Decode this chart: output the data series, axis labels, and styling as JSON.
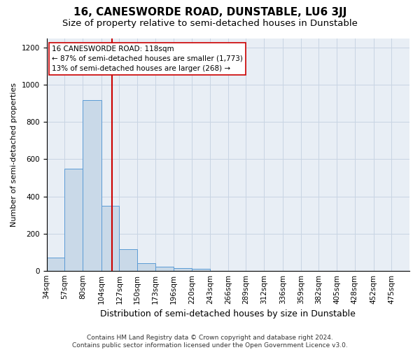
{
  "title": "16, CANESWORDE ROAD, DUNSTABLE, LU6 3JJ",
  "subtitle": "Size of property relative to semi-detached houses in Dunstable",
  "xlabel": "Distribution of semi-detached houses by size in Dunstable",
  "ylabel": "Number of semi-detached properties",
  "annotation_line1": "16 CANESWORDE ROAD: 118sqm",
  "annotation_line2": "← 87% of semi-detached houses are smaller (1,773)",
  "annotation_line3": "13% of semi-detached houses are larger (268) →",
  "footer_line1": "Contains HM Land Registry data © Crown copyright and database right 2024.",
  "footer_line2": "Contains public sector information licensed under the Open Government Licence v3.0.",
  "property_value": 118,
  "bin_edges": [
    34,
    57,
    80,
    104,
    127,
    150,
    173,
    196,
    220,
    243,
    266,
    289,
    312,
    336,
    359,
    382,
    405,
    428,
    452,
    475,
    498
  ],
  "bar_heights": [
    70,
    550,
    920,
    350,
    115,
    40,
    20,
    15,
    10,
    0,
    0,
    0,
    0,
    0,
    0,
    0,
    0,
    0,
    0,
    0
  ],
  "bar_color": "#c9d9e8",
  "bar_edge_color": "#5b9bd5",
  "vline_color": "#cc0000",
  "annotation_bg": "#ffffff",
  "annotation_edge": "#cc0000",
  "grid_color": "#c8d4e3",
  "bg_color": "#e8eef5",
  "ylim": [
    0,
    1250
  ],
  "yticks": [
    0,
    200,
    400,
    600,
    800,
    1000,
    1200
  ],
  "title_fontsize": 11,
  "subtitle_fontsize": 9.5,
  "xlabel_fontsize": 9,
  "ylabel_fontsize": 8,
  "tick_fontsize": 7.5,
  "annotation_fontsize": 7.5,
  "footer_fontsize": 6.5
}
